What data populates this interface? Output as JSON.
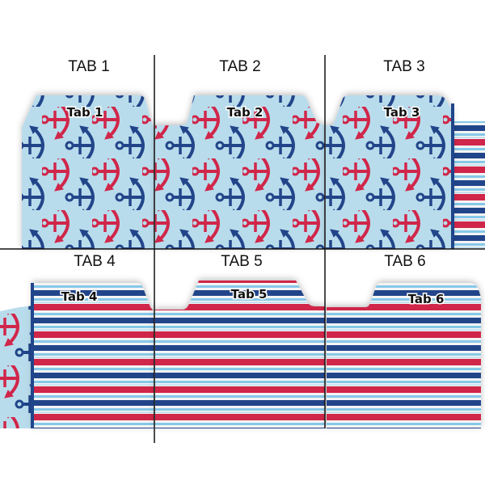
{
  "panels": [
    {
      "header": "TAB 1",
      "tab_label": "Tab 1",
      "design": "anchors"
    },
    {
      "header": "TAB 2",
      "tab_label": "Tab 2",
      "design": "anchors"
    },
    {
      "header": "TAB 3",
      "tab_label": "Tab 3",
      "design": "anchors"
    },
    {
      "header": "TAB 4",
      "tab_label": "Tab 4",
      "design": "stripes"
    },
    {
      "header": "TAB 5",
      "tab_label": "Tab 5",
      "design": "stripes"
    },
    {
      "header": "TAB 6",
      "tab_label": "Tab 6",
      "design": "stripes"
    }
  ],
  "colors": {
    "anchor_background": "#b9dcec",
    "red": "#d0264a",
    "navy": "#20458a",
    "light_blue": "#86c8e8",
    "white": "#f4f4f4"
  }
}
